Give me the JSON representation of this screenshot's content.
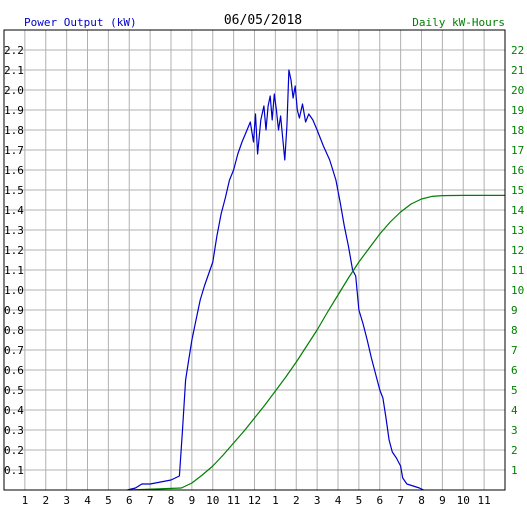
{
  "chart_data": {
    "type": "line",
    "title": "06/05/2018",
    "ylabel_left": "Power Output (kW)",
    "ylabel_right": "Daily kW-Hours",
    "colors": {
      "left_axis_text": "#0000cc",
      "right_axis_text": "#008000",
      "power": "#0000cc",
      "energy": "#008000",
      "grid": "#b0b0b0",
      "background": "#ffffff"
    },
    "grid": true,
    "x_tick_hours": [
      1,
      2,
      3,
      4,
      5,
      6,
      7,
      8,
      9,
      10,
      11,
      12,
      13,
      14,
      15,
      16,
      17,
      18,
      19,
      20,
      21,
      22,
      23
    ],
    "x_tick_labels": [
      "1",
      "2",
      "3",
      "4",
      "5",
      "6",
      "7",
      "8",
      "9",
      "10",
      "11",
      "12",
      "1",
      "2",
      "3",
      "4",
      "5",
      "6",
      "7",
      "8",
      "9",
      "10",
      "11"
    ],
    "xlim": [
      0,
      24
    ],
    "ylim_left": [
      0,
      2.3
    ],
    "ylim_right": [
      0,
      23
    ],
    "left_tick_labels": [
      "0.1",
      "0.2",
      "0.3",
      "0.4",
      "0.5",
      "0.6",
      "0.7",
      "0.8",
      "0.9",
      "1.0",
      "1.1",
      "1.2",
      "1.3",
      "1.4",
      "1.5",
      "1.6",
      "1.7",
      "1.8",
      "1.9",
      "2.0",
      "2.1",
      "2.2"
    ],
    "right_tick_labels": [
      "1",
      "2",
      "3",
      "4",
      "5",
      "6",
      "7",
      "8",
      "9",
      "10",
      "11",
      "12",
      "13",
      "14",
      "15",
      "16",
      "17",
      "18",
      "19",
      "20",
      "21",
      "22"
    ],
    "series": [
      {
        "name": "Power Output (kW)",
        "axis": "left",
        "points": [
          [
            5.9,
            0
          ],
          [
            6.3,
            0.01
          ],
          [
            6.6,
            0.03
          ],
          [
            7.0,
            0.03
          ],
          [
            7.5,
            0.04
          ],
          [
            8.0,
            0.05
          ],
          [
            8.4,
            0.07
          ],
          [
            8.55,
            0.3
          ],
          [
            8.7,
            0.55
          ],
          [
            8.85,
            0.65
          ],
          [
            9.0,
            0.75
          ],
          [
            9.2,
            0.85
          ],
          [
            9.4,
            0.95
          ],
          [
            9.6,
            1.02
          ],
          [
            9.8,
            1.08
          ],
          [
            10.0,
            1.14
          ],
          [
            10.2,
            1.27
          ],
          [
            10.4,
            1.38
          ],
          [
            10.6,
            1.46
          ],
          [
            10.8,
            1.55
          ],
          [
            11.0,
            1.6
          ],
          [
            11.2,
            1.68
          ],
          [
            11.4,
            1.74
          ],
          [
            11.6,
            1.79
          ],
          [
            11.8,
            1.84
          ],
          [
            11.95,
            1.74
          ],
          [
            12.05,
            1.88
          ],
          [
            12.15,
            1.68
          ],
          [
            12.3,
            1.85
          ],
          [
            12.45,
            1.92
          ],
          [
            12.55,
            1.8
          ],
          [
            12.65,
            1.92
          ],
          [
            12.75,
            1.97
          ],
          [
            12.85,
            1.85
          ],
          [
            12.95,
            1.98
          ],
          [
            13.05,
            1.9
          ],
          [
            13.15,
            1.8
          ],
          [
            13.25,
            1.87
          ],
          [
            13.35,
            1.76
          ],
          [
            13.45,
            1.65
          ],
          [
            13.55,
            1.82
          ],
          [
            13.65,
            2.1
          ],
          [
            13.75,
            2.05
          ],
          [
            13.85,
            1.96
          ],
          [
            13.95,
            2.02
          ],
          [
            14.05,
            1.9
          ],
          [
            14.15,
            1.86
          ],
          [
            14.3,
            1.93
          ],
          [
            14.45,
            1.84
          ],
          [
            14.6,
            1.88
          ],
          [
            14.8,
            1.85
          ],
          [
            15.0,
            1.8
          ],
          [
            15.3,
            1.72
          ],
          [
            15.6,
            1.65
          ],
          [
            15.9,
            1.55
          ],
          [
            16.1,
            1.44
          ],
          [
            16.3,
            1.32
          ],
          [
            16.5,
            1.22
          ],
          [
            16.7,
            1.1
          ],
          [
            16.85,
            1.07
          ],
          [
            17.0,
            0.9
          ],
          [
            17.2,
            0.83
          ],
          [
            17.4,
            0.75
          ],
          [
            17.6,
            0.66
          ],
          [
            17.8,
            0.58
          ],
          [
            18.0,
            0.5
          ],
          [
            18.15,
            0.46
          ],
          [
            18.3,
            0.36
          ],
          [
            18.45,
            0.25
          ],
          [
            18.6,
            0.19
          ],
          [
            18.8,
            0.16
          ],
          [
            19.0,
            0.12
          ],
          [
            19.1,
            0.06
          ],
          [
            19.3,
            0.03
          ],
          [
            19.6,
            0.02
          ],
          [
            19.9,
            0.01
          ],
          [
            20.1,
            0
          ]
        ]
      },
      {
        "name": "Daily kW-Hours",
        "axis": "right",
        "points": [
          [
            6.0,
            0
          ],
          [
            8.5,
            0.1
          ],
          [
            9.0,
            0.35
          ],
          [
            9.5,
            0.75
          ],
          [
            10.0,
            1.2
          ],
          [
            10.5,
            1.75
          ],
          [
            11.0,
            2.35
          ],
          [
            11.5,
            2.95
          ],
          [
            12.0,
            3.6
          ],
          [
            12.5,
            4.25
          ],
          [
            13.0,
            4.95
          ],
          [
            13.5,
            5.65
          ],
          [
            14.0,
            6.4
          ],
          [
            14.5,
            7.2
          ],
          [
            15.0,
            8.0
          ],
          [
            15.5,
            8.9
          ],
          [
            16.0,
            9.75
          ],
          [
            16.5,
            10.6
          ],
          [
            17.0,
            11.4
          ],
          [
            17.5,
            12.1
          ],
          [
            18.0,
            12.8
          ],
          [
            18.5,
            13.4
          ],
          [
            19.0,
            13.9
          ],
          [
            19.5,
            14.3
          ],
          [
            20.0,
            14.55
          ],
          [
            20.5,
            14.68
          ],
          [
            21.0,
            14.72
          ],
          [
            22.0,
            14.73
          ],
          [
            24.0,
            14.73
          ]
        ]
      }
    ]
  }
}
